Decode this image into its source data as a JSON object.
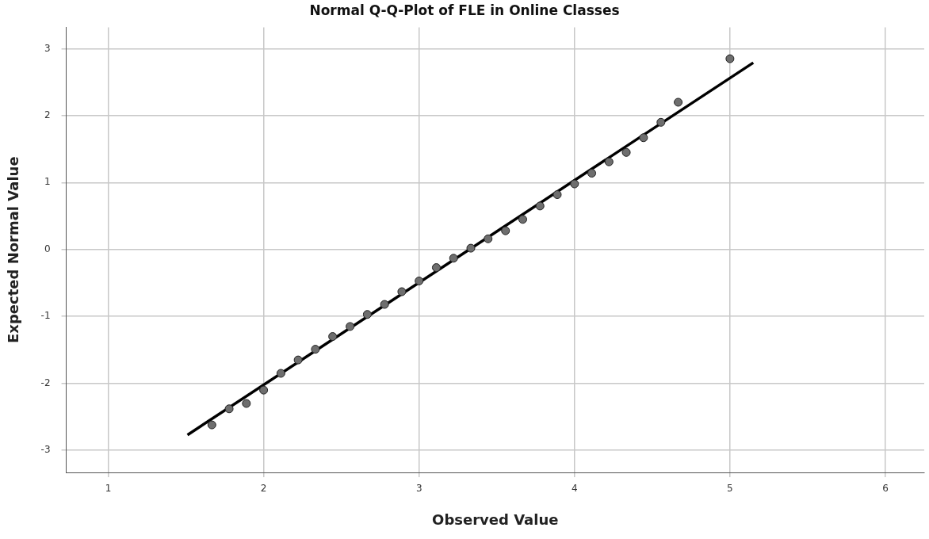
{
  "chart_data": {
    "type": "scatter",
    "title": "Normal Q-Q-Plot of FLE in Online Classes",
    "xlabel": "Observed Value",
    "ylabel": "Expected Normal Value",
    "x": [
      1.667,
      1.778,
      1.889,
      2.0,
      2.111,
      2.222,
      2.333,
      2.444,
      2.556,
      2.667,
      2.778,
      2.889,
      3.0,
      3.111,
      3.222,
      3.333,
      3.444,
      3.556,
      3.667,
      3.778,
      3.889,
      4.0,
      4.111,
      4.222,
      4.333,
      4.444,
      4.556,
      4.667,
      5.0
    ],
    "series": [
      {
        "color": "#6e6e6e",
        "values": [
          -2.62,
          -2.38,
          -2.3,
          -2.1,
          -1.85,
          -1.65,
          -1.49,
          -1.3,
          -1.15,
          -0.97,
          -0.82,
          -0.63,
          -0.47,
          -0.27,
          -0.13,
          0.02,
          0.16,
          0.28,
          0.45,
          0.65,
          0.82,
          0.98,
          1.14,
          1.31,
          1.45,
          1.67,
          1.9,
          2.2,
          2.85
        ]
      },
      {
        "type": "line",
        "marker": "none",
        "color": "#000000",
        "x": [
          1.51,
          5.15
        ],
        "values": [
          -2.77,
          2.79
        ]
      }
    ],
    "xlim": [
      0.73,
      6.25
    ],
    "ylim": [
      -3.33,
      3.32
    ],
    "xticks": [
      1,
      2,
      3,
      4,
      5,
      6
    ],
    "yticks": [
      -3,
      -2,
      -1,
      0,
      1,
      2,
      3
    ],
    "grid": true,
    "legend": false,
    "marker": "circle"
  }
}
